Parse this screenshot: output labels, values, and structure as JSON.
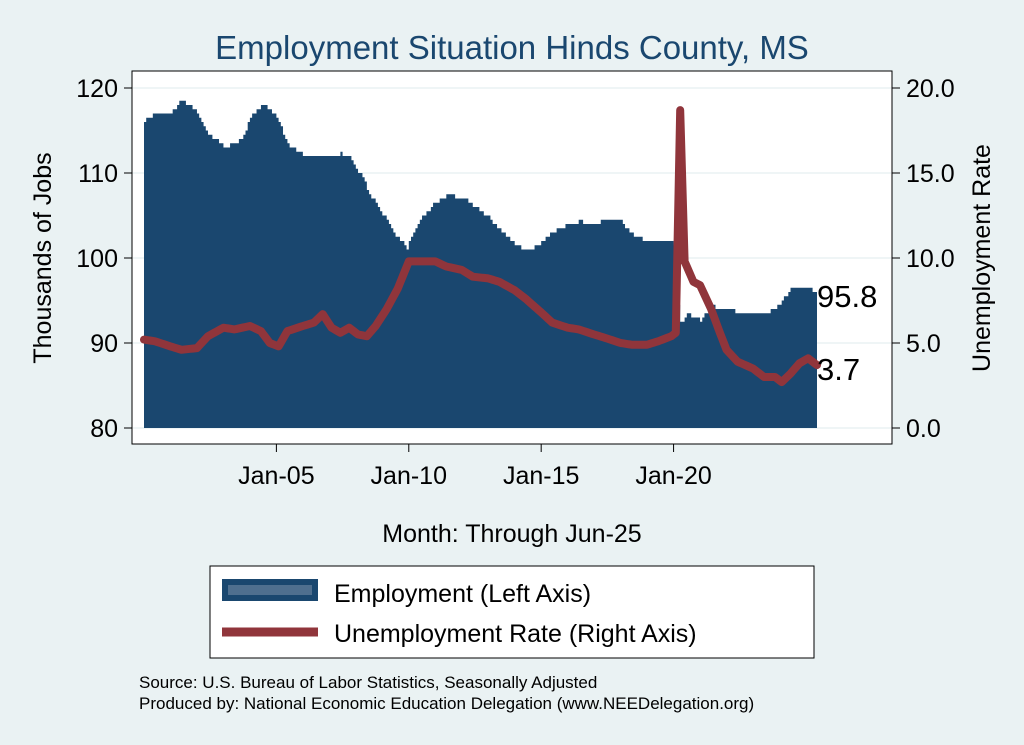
{
  "chart_data": {
    "type": "bar",
    "title": "Employment Situation Hinds  County, MS",
    "xlabel": "Month: Through Jun-25",
    "ylabel_left": "Thousands of Jobs",
    "ylabel_right": "Unemployment Rate",
    "ylim_left": [
      80,
      120
    ],
    "ylim_right": [
      0,
      20
    ],
    "yticks_left": [
      "80",
      "90",
      "100",
      "110",
      "120"
    ],
    "yticks_right": [
      "0.0",
      "5.0",
      "10.0",
      "15.0",
      "20.0"
    ],
    "xlim": [
      "Jan-00",
      "Jun-25"
    ],
    "xticks": [
      "Jan-05",
      "Jan-10",
      "Jan-15",
      "Jan-20"
    ],
    "grid": true,
    "colors": {
      "employment": "#1a476f",
      "unemployment": "#90353b",
      "background": "#eaf2f3",
      "title": "#1a476f"
    },
    "series": [
      {
        "name": "Employment (Left Axis)",
        "axis": "left",
        "type": "area",
        "points": [
          [
            "2000-01",
            116.2
          ],
          [
            "2000-06",
            116.9
          ],
          [
            "2001-01",
            117.0
          ],
          [
            "2001-06",
            118.6
          ],
          [
            "2002-01",
            117.2
          ],
          [
            "2002-06",
            114.5
          ],
          [
            "2003-01",
            113.2
          ],
          [
            "2003-06",
            113.3
          ],
          [
            "2003-10",
            114.4
          ],
          [
            "2004-01",
            116.6
          ],
          [
            "2004-06",
            118.0
          ],
          [
            "2004-10",
            117.6
          ],
          [
            "2005-02",
            116.0
          ],
          [
            "2005-06",
            113.4
          ],
          [
            "2006-01",
            112.2
          ],
          [
            "2006-06",
            111.8
          ],
          [
            "2007-01",
            111.8
          ],
          [
            "2007-06",
            112.3
          ],
          [
            "2007-10",
            111.9
          ],
          [
            "2008-03",
            109.8
          ],
          [
            "2008-08",
            107.2
          ],
          [
            "2009-01",
            105.2
          ],
          [
            "2009-06",
            103.0
          ],
          [
            "2009-12",
            101.2
          ],
          [
            "2010-06",
            104.5
          ],
          [
            "2011-01",
            106.6
          ],
          [
            "2011-06",
            107.3
          ],
          [
            "2012-01",
            107.2
          ],
          [
            "2012-06",
            106.2
          ],
          [
            "2013-01",
            104.8
          ],
          [
            "2013-06",
            103.3
          ],
          [
            "2014-01",
            101.6
          ],
          [
            "2014-06",
            100.8
          ],
          [
            "2015-01",
            101.8
          ],
          [
            "2015-06",
            103.1
          ],
          [
            "2016-01",
            104.0
          ],
          [
            "2016-06",
            104.3
          ],
          [
            "2017-01",
            104.1
          ],
          [
            "2017-06",
            104.4
          ],
          [
            "2018-01",
            104.3
          ],
          [
            "2018-06",
            102.8
          ],
          [
            "2019-01",
            101.9
          ],
          [
            "2019-06",
            101.8
          ],
          [
            "2019-12",
            101.9
          ],
          [
            "2020-04",
            92.3
          ],
          [
            "2020-07",
            93.5
          ],
          [
            "2021-01",
            92.7
          ],
          [
            "2021-06",
            94.3
          ],
          [
            "2022-01",
            94.0
          ],
          [
            "2022-06",
            93.6
          ],
          [
            "2023-01",
            93.3
          ],
          [
            "2023-06",
            93.3
          ],
          [
            "2024-01",
            94.6
          ],
          [
            "2024-06",
            96.4
          ],
          [
            "2025-01",
            96.6
          ],
          [
            "2025-06",
            95.8
          ]
        ]
      },
      {
        "name": "Unemployment Rate (Right Axis)",
        "axis": "right",
        "type": "line",
        "points": [
          [
            "2000-01",
            5.2
          ],
          [
            "2000-06",
            5.1
          ],
          [
            "2001-01",
            4.8
          ],
          [
            "2001-06",
            4.6
          ],
          [
            "2002-01",
            4.7
          ],
          [
            "2002-06",
            5.4
          ],
          [
            "2003-01",
            5.9
          ],
          [
            "2003-06",
            5.8
          ],
          [
            "2004-01",
            6.0
          ],
          [
            "2004-06",
            5.7
          ],
          [
            "2004-10",
            5.0
          ],
          [
            "2005-02",
            4.8
          ],
          [
            "2005-06",
            5.7
          ],
          [
            "2006-01",
            6.0
          ],
          [
            "2006-06",
            6.2
          ],
          [
            "2006-10",
            6.7
          ],
          [
            "2007-02",
            5.9
          ],
          [
            "2007-06",
            5.6
          ],
          [
            "2007-10",
            5.9
          ],
          [
            "2008-02",
            5.5
          ],
          [
            "2008-06",
            5.4
          ],
          [
            "2008-10",
            6.0
          ],
          [
            "2009-03",
            7.0
          ],
          [
            "2009-08",
            8.2
          ],
          [
            "2010-01",
            9.8
          ],
          [
            "2010-06",
            9.8
          ],
          [
            "2011-01",
            9.8
          ],
          [
            "2011-06",
            9.5
          ],
          [
            "2012-01",
            9.3
          ],
          [
            "2012-06",
            8.9
          ],
          [
            "2013-01",
            8.8
          ],
          [
            "2013-06",
            8.6
          ],
          [
            "2014-01",
            8.1
          ],
          [
            "2014-06",
            7.6
          ],
          [
            "2015-01",
            6.8
          ],
          [
            "2015-06",
            6.2
          ],
          [
            "2016-01",
            5.9
          ],
          [
            "2016-06",
            5.8
          ],
          [
            "2017-01",
            5.5
          ],
          [
            "2017-06",
            5.3
          ],
          [
            "2018-01",
            5.0
          ],
          [
            "2018-06",
            4.9
          ],
          [
            "2019-01",
            4.9
          ],
          [
            "2019-06",
            5.1
          ],
          [
            "2019-12",
            5.4
          ],
          [
            "2020-02",
            5.6
          ],
          [
            "2020-04",
            18.7
          ],
          [
            "2020-06",
            9.8
          ],
          [
            "2020-10",
            8.6
          ],
          [
            "2021-01",
            8.4
          ],
          [
            "2021-06",
            7.0
          ],
          [
            "2021-10",
            5.6
          ],
          [
            "2022-01",
            4.6
          ],
          [
            "2022-06",
            3.9
          ],
          [
            "2023-01",
            3.5
          ],
          [
            "2023-06",
            3.0
          ],
          [
            "2023-11",
            3.0
          ],
          [
            "2024-02",
            2.7
          ],
          [
            "2024-06",
            3.2
          ],
          [
            "2024-10",
            3.8
          ],
          [
            "2025-02",
            4.1
          ],
          [
            "2025-06",
            3.7
          ]
        ]
      }
    ],
    "end_labels": {
      "employment": "95.8",
      "unemployment": "3.7"
    },
    "legend": {
      "position": "bottom",
      "items": [
        "Employment (Left Axis)",
        "Unemployment Rate (Right Axis)"
      ]
    },
    "notes": [
      "Source: U.S. Bureau of Labor Statistics, Seasonally Adjusted",
      "Produced by: National Economic Education Delegation (www.NEEDelegation.org)"
    ]
  }
}
